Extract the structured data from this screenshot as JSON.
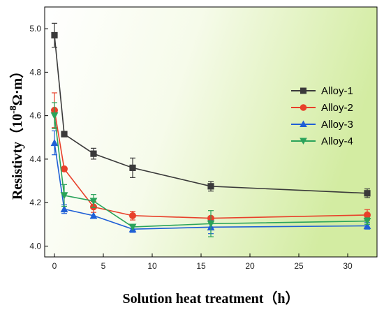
{
  "chart_data": {
    "type": "line",
    "xlabel": "Solution heat treatment（h）",
    "ylabel_main": "Resistivty（10",
    "ylabel_sup": "-8",
    "ylabel_unit": "Ω·m）",
    "x": [
      0,
      1,
      4,
      8,
      16,
      32
    ],
    "xlim": [
      -1,
      33
    ],
    "ylim": [
      3.95,
      5.1
    ],
    "xticks": [
      0,
      5,
      10,
      15,
      20,
      25,
      30
    ],
    "yticks": [
      4.0,
      4.2,
      4.4,
      4.6,
      4.8,
      5.0
    ],
    "ytick_labels": [
      "4.0",
      "4.2",
      "4.4",
      "4.6",
      "4.8",
      "5.0"
    ],
    "legend_position": "top-right",
    "series": [
      {
        "name": "Alloy-1",
        "color": "#3a3a3a",
        "marker": "square",
        "values": [
          4.97,
          4.515,
          4.425,
          4.36,
          4.275,
          4.243
        ],
        "errors": [
          0.055,
          0.0,
          0.025,
          0.045,
          0.022,
          0.02
        ]
      },
      {
        "name": "Alloy-2",
        "color": "#e8402a",
        "marker": "circle",
        "values": [
          4.625,
          4.355,
          4.18,
          4.14,
          4.128,
          4.143
        ],
        "errors": [
          0.08,
          0.0,
          0.025,
          0.02,
          0.0,
          0.025
        ]
      },
      {
        "name": "Alloy-3",
        "color": "#1f5fd6",
        "marker": "triangle-up",
        "values": [
          4.475,
          4.17,
          4.14,
          4.078,
          4.087,
          4.093
        ],
        "errors": [
          0.055,
          0.02,
          0.0,
          0.015,
          0.03,
          0.015
        ]
      },
      {
        "name": "Alloy-4",
        "color": "#2aa35a",
        "marker": "triangle-down",
        "values": [
          4.6,
          4.233,
          4.207,
          4.088,
          4.103,
          4.115
        ],
        "errors": [
          0.06,
          0.05,
          0.03,
          0.0,
          0.06,
          0.015
        ]
      }
    ]
  }
}
